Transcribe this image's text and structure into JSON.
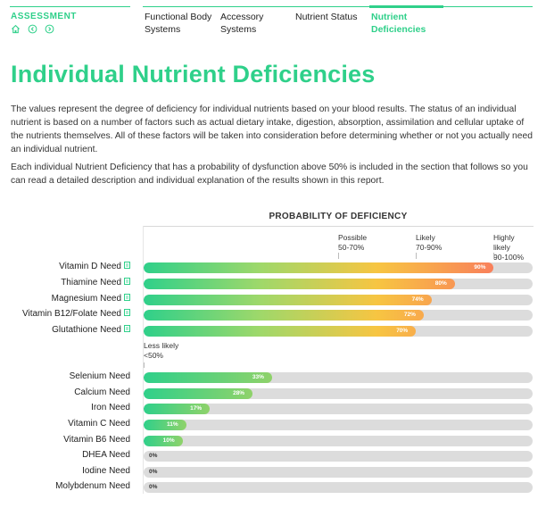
{
  "header": {
    "section_title": "ASSESSMENT",
    "icons": [
      "home-icon",
      "back-icon",
      "forward-icon"
    ],
    "tabs": [
      {
        "label_line1": "Functional Body",
        "label_line2": "Systems",
        "active": false
      },
      {
        "label_line1": "Accessory",
        "label_line2": "Systems",
        "active": false
      },
      {
        "label_line1": "Nutrient Status",
        "label_line2": "",
        "active": false
      },
      {
        "label_line1": "Nutrient",
        "label_line2": "Deficiencies",
        "active": true
      }
    ]
  },
  "page": {
    "title": "Individual Nutrient Deficiencies",
    "paragraph1": "The values represent the degree of deficiency for individual nutrients based on your blood results. The status of an individual nutrient is based on a number of factors such as actual dietary intake, digestion, absorption, assimilation and cellular uptake of the nutrients themselves. All of these factors will be taken into consideration before determining whether or not you actually need an individual nutrient.",
    "paragraph2": "Each individual Nutrient Deficiency that has a probability of dysfunction above 50% is included in the section that follows so you can read a detailed description and individual explanation of the results shown in this report."
  },
  "colors": {
    "accent": "#2fd08a",
    "bar_green": "#2fd08a",
    "bar_yellow": "#f7c542",
    "bar_orange": "#f97b5d",
    "track": "#dcdcdc"
  },
  "chart_data": {
    "type": "bar",
    "orientation": "horizontal",
    "title": "PROBABILITY OF DEFICIENCY",
    "xlim": [
      0,
      100
    ],
    "zones": [
      {
        "label_line1": "Less likely",
        "label_line2": "<50%",
        "line3": ""
      },
      {
        "label_line1": "Possible",
        "label_line2": "50-70%",
        "line3": ""
      },
      {
        "label_line1": "Likely",
        "label_line2": "70-90%",
        "line3": ""
      },
      {
        "label_line1": "Highly",
        "label_line2": "likely",
        "line3": "90-100%"
      }
    ],
    "categories": [
      "Vitamin D Need",
      "Thiamine Need",
      "Magnesium Need",
      "Vitamin B12/Folate Need",
      "Glutathione Need",
      "Selenium Need",
      "Calcium Need",
      "Iron Need",
      "Vitamin C Need",
      "Vitamin B6 Need",
      "DHEA Need",
      "Iodine Need",
      "Molybdenum Need"
    ],
    "values": [
      90,
      80,
      74,
      72,
      70,
      33,
      28,
      17,
      11,
      10,
      0,
      0,
      0
    ],
    "value_labels": [
      "90%",
      "80%",
      "74%",
      "72%",
      "70%",
      "33%",
      "28%",
      "17%",
      "11%",
      "10%",
      "0%",
      "0%",
      "0%"
    ],
    "has_doc_icon": [
      true,
      true,
      true,
      true,
      true,
      false,
      false,
      false,
      false,
      false,
      false,
      false,
      false
    ]
  }
}
